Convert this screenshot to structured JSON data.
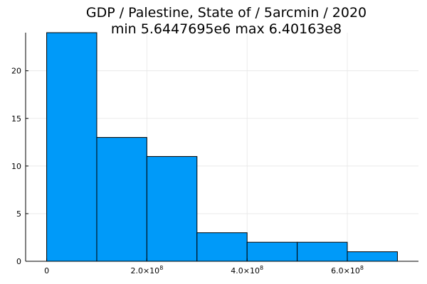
{
  "chart_data": {
    "type": "bar",
    "title": "GDP / Palestine, State of / 5arcmin / 2020",
    "subtitle": "min 5.6447695e6  max 6.40163e8",
    "xlabel": "",
    "ylabel": "",
    "bins": [
      {
        "start": 0,
        "end": 100000000,
        "count": 24
      },
      {
        "start": 100000000,
        "end": 200000000,
        "count": 13
      },
      {
        "start": 200000000,
        "end": 300000000,
        "count": 11
      },
      {
        "start": 300000000,
        "end": 400000000,
        "count": 3
      },
      {
        "start": 400000000,
        "end": 500000000,
        "count": 2
      },
      {
        "start": 500000000,
        "end": 600000000,
        "count": 2
      },
      {
        "start": 600000000,
        "end": 700000000,
        "count": 1
      }
    ],
    "xlim": [
      -42000000,
      742000000
    ],
    "ylim": [
      0,
      24
    ],
    "x_ticks": [
      {
        "value": 0,
        "label": "0",
        "exp": ""
      },
      {
        "value": 200000000,
        "label": "2.0×10",
        "exp": "8"
      },
      {
        "value": 400000000,
        "label": "4.0×10",
        "exp": "8"
      },
      {
        "value": 600000000,
        "label": "6.0×10",
        "exp": "8"
      }
    ],
    "y_ticks": [
      {
        "value": 0,
        "label": "0"
      },
      {
        "value": 5,
        "label": "5"
      },
      {
        "value": 10,
        "label": "10"
      },
      {
        "value": 15,
        "label": "15"
      },
      {
        "value": 20,
        "label": "20"
      }
    ],
    "grid": true,
    "legend": "none",
    "colors": {
      "bar_fill": "#009af9",
      "bar_stroke": "#000000",
      "grid": "#e6e6e6",
      "axis": "#000000"
    }
  }
}
